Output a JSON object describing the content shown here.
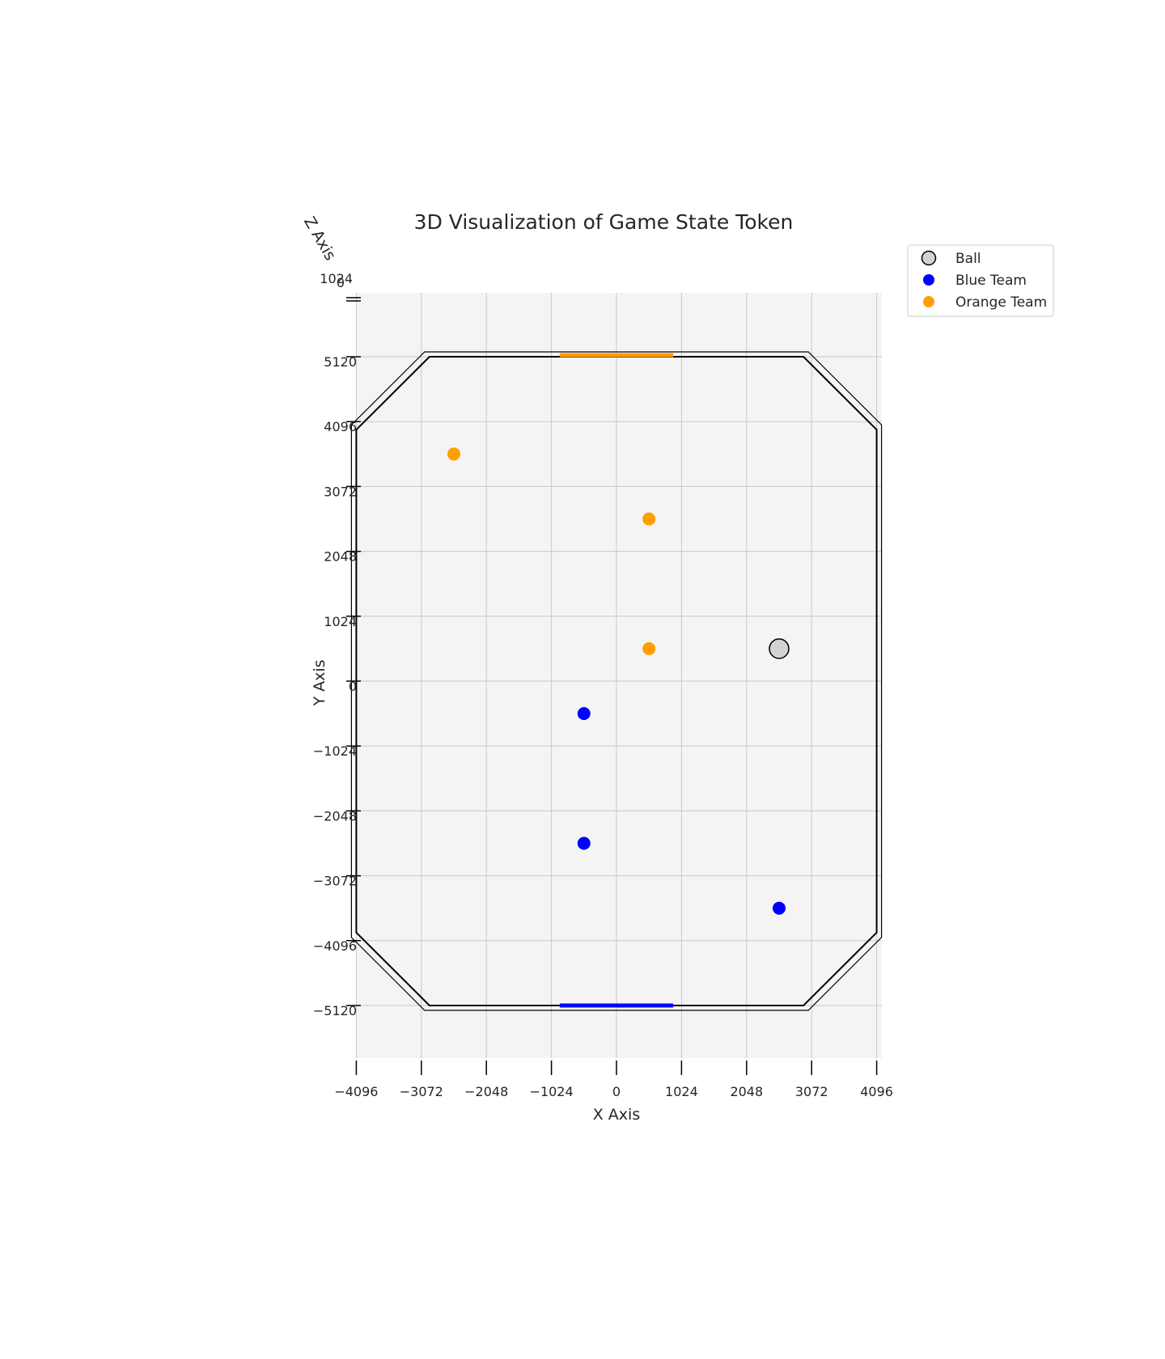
{
  "chart_data": {
    "type": "scatter",
    "title": "3D Visualization of Game State Token",
    "xlabel": "X Axis",
    "ylabel": "Y Axis",
    "zlabel": "Z Axis",
    "view": "top-down 3D",
    "grid": true,
    "legend_position": "top-right",
    "xlim": [
      -4096,
      4096
    ],
    "ylim": [
      -6000,
      6000
    ],
    "x_ticks": [
      "−4096",
      "−3072",
      "−2048",
      "−1024",
      "0",
      "1024",
      "2048",
      "3072",
      "4096"
    ],
    "x_tick_values": [
      -4096,
      -3072,
      -2048,
      -1024,
      0,
      1024,
      2048,
      3072,
      4096
    ],
    "y_ticks": [
      "−5120",
      "−4096",
      "−3072",
      "−2048",
      "−1024",
      "0",
      "1024",
      "2048",
      "3072",
      "4096",
      "5120"
    ],
    "y_tick_values": [
      -5120,
      -4096,
      -3072,
      -2048,
      -1024,
      0,
      1024,
      2048,
      3072,
      4096,
      5120
    ],
    "z_ticks": [
      "0",
      "1024"
    ],
    "field_outline": [
      [
        -2944,
        5120
      ],
      [
        2944,
        5120
      ],
      [
        4096,
        3968
      ],
      [
        4096,
        -3968
      ],
      [
        2944,
        -5120
      ],
      [
        -2944,
        -5120
      ],
      [
        -4096,
        -3968
      ],
      [
        -4096,
        3968
      ]
    ],
    "goals": [
      {
        "team": "orange",
        "x": [
          -893,
          893
        ],
        "y": 5120,
        "color": "#FF9E00"
      },
      {
        "team": "blue",
        "x": [
          -893,
          893
        ],
        "y": -5120,
        "color": "#0000FF"
      }
    ],
    "series": [
      {
        "name": "Ball",
        "color": "#D3D3D3",
        "edge": "#000000",
        "points": [
          {
            "x": 2560,
            "y": 512
          }
        ]
      },
      {
        "name": "Blue Team",
        "color": "#0000FF",
        "points": [
          {
            "x": -512,
            "y": -512
          },
          {
            "x": -512,
            "y": -2560
          },
          {
            "x": 2560,
            "y": -3584
          }
        ]
      },
      {
        "name": "Orange Team",
        "color": "#FF9E00",
        "points": [
          {
            "x": -2560,
            "y": 3584
          },
          {
            "x": 512,
            "y": 2560
          },
          {
            "x": 512,
            "y": 512
          }
        ]
      }
    ]
  }
}
